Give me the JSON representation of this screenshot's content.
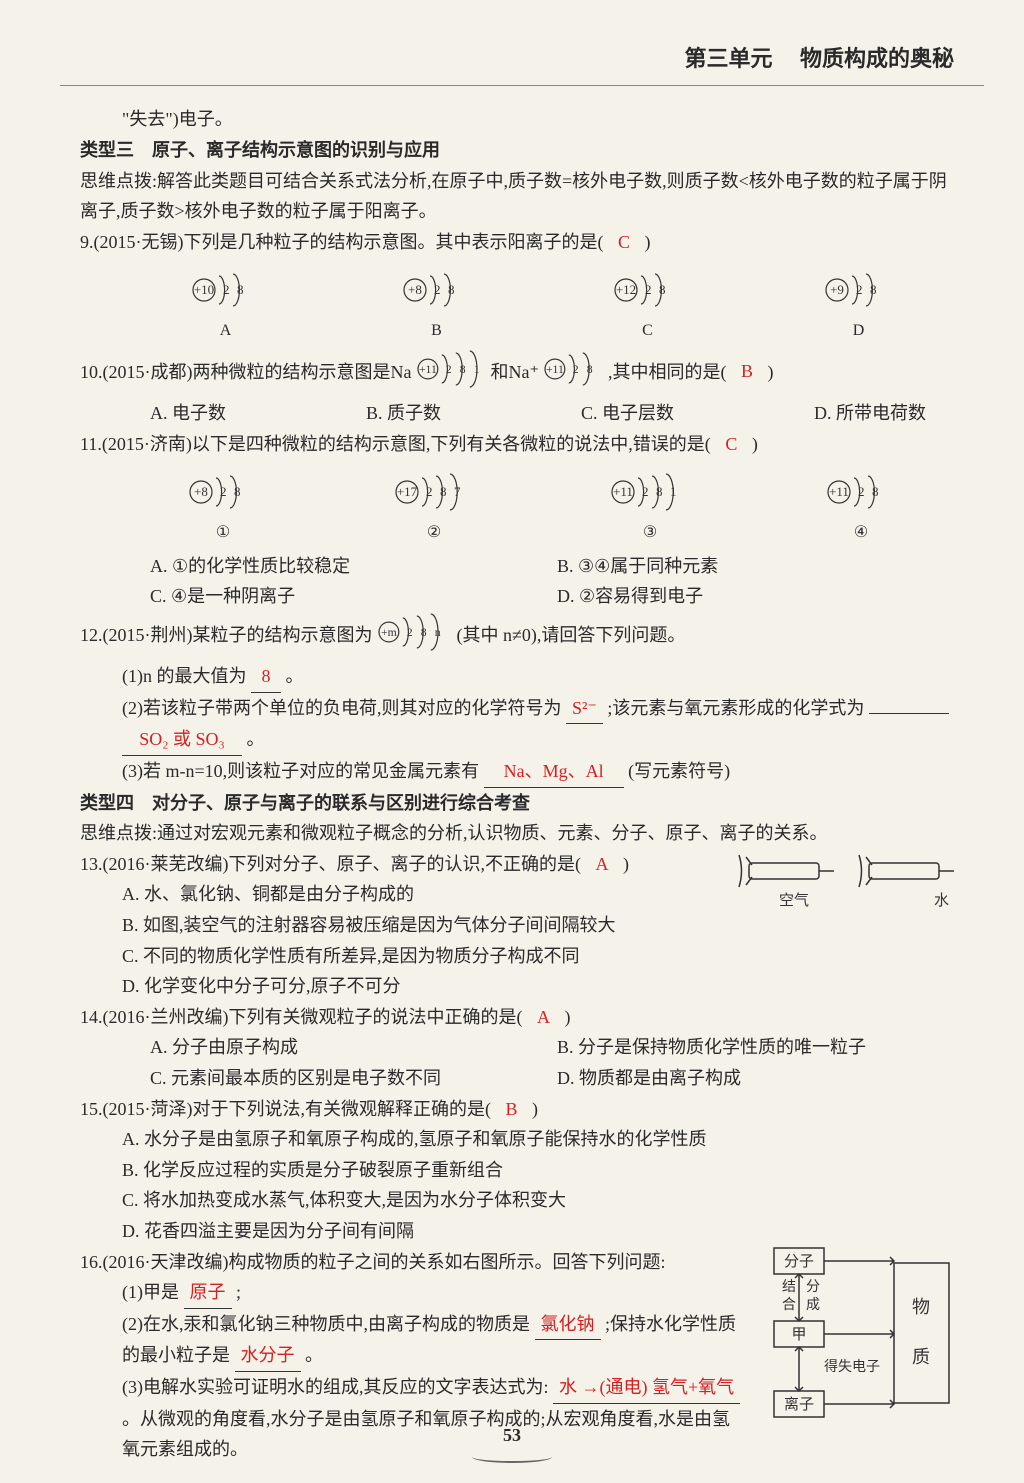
{
  "header": {
    "unit": "第三单元",
    "title": "物质构成的奥秘"
  },
  "intro_line": "\"失去\")电子。",
  "type3": {
    "heading": "类型三　原子、离子结构示意图的识别与应用",
    "hint": "思维点拨:解答此类题目可结合关系式法分析,在原子中,质子数=核外电子数,则质子数<核外电子数的粒子属于阴离子,质子数>核外电子数的粒子属于阳离子。"
  },
  "q9": {
    "text": "9.(2015·无锡)下列是几种粒子的结构示意图。其中表示阳离子的是(",
    "answer": "C",
    "close": ")",
    "atoms": [
      {
        "nucleus": "+10",
        "shells": [
          "2",
          "8"
        ],
        "label": "A"
      },
      {
        "nucleus": "+8",
        "shells": [
          "2",
          "8"
        ],
        "label": "B"
      },
      {
        "nucleus": "+12",
        "shells": [
          "2",
          "8"
        ],
        "label": "C"
      },
      {
        "nucleus": "+9",
        "shells": [
          "2",
          "8"
        ],
        "label": "D"
      }
    ]
  },
  "q10": {
    "prefix": "10.(2015·成都)两种微粒的结构示意图是Na",
    "atom1": {
      "nucleus": "+11",
      "shells": [
        "2",
        "8",
        "1"
      ]
    },
    "mid": "和Na⁺",
    "atom2": {
      "nucleus": "+11",
      "shells": [
        "2",
        "8"
      ]
    },
    "suffix": ",其中相同的是(",
    "answer": "B",
    "close": ")",
    "options": {
      "A": "A. 电子数",
      "B": "B. 质子数",
      "C": "C. 电子层数",
      "D": "D. 所带电荷数"
    }
  },
  "q11": {
    "text": "11.(2015·济南)以下是四种微粒的结构示意图,下列有关各微粒的说法中,错误的是(",
    "answer": "C",
    "close": ")",
    "atoms": [
      {
        "nucleus": "+8",
        "shells": [
          "2",
          "8"
        ],
        "label": "①"
      },
      {
        "nucleus": "+17",
        "shells": [
          "2",
          "8",
          "7"
        ],
        "label": "②"
      },
      {
        "nucleus": "+11",
        "shells": [
          "2",
          "8",
          "1"
        ],
        "label": "③"
      },
      {
        "nucleus": "+11",
        "shells": [
          "2",
          "8"
        ],
        "label": "④"
      }
    ],
    "options": {
      "A": "A. ①的化学性质比较稳定",
      "B": "B. ③④属于同种元素",
      "C": "C. ④是一种阴离子",
      "D": "D. ②容易得到电子"
    }
  },
  "q12": {
    "prefix": "12.(2015·荆州)某粒子的结构示意图为",
    "atom": {
      "nucleus": "+m",
      "shells": [
        "2",
        "8",
        "n"
      ]
    },
    "suffix": "(其中 n≠0),请回答下列问题。",
    "part1_pre": "(1)n 的最大值为",
    "part1_ans": "8",
    "part1_post": "。",
    "part2_pre": "(2)若该粒子带两个单位的负电荷,则其对应的化学符号为",
    "part2_ans1": "S²⁻",
    "part2_mid": ";该元素与氧元素形成的化学式为",
    "part2_ans2": "SO₂ 或 SO₃",
    "part2_post": "。",
    "part3_pre": "(3)若 m-n=10,则该粒子对应的常见金属元素有",
    "part3_ans": "Na、Mg、Al",
    "part3_post": "(写元素符号)"
  },
  "type4": {
    "heading": "类型四　对分子、原子与离子的联系与区别进行综合考查",
    "hint": "思维点拨:通过对宏观元素和微观粒子概念的分析,认识物质、元素、分子、原子、离子的关系。"
  },
  "q13": {
    "text": "13.(2016·莱芜改编)下列对分子、原子、离子的认识,不正确的是(",
    "answer": "A",
    "close": ")",
    "optA": "A. 水、氯化钠、铜都是由分子构成的",
    "optB": "B. 如图,装空气的注射器容易被压缩是因为气体分子间间隔较大",
    "optC": "C. 不同的物质化学性质有所差异,是因为物质分子构成不同",
    "optD": "D. 化学变化中分子可分,原子不可分",
    "img_labels": {
      "left": "空气",
      "right": "水"
    }
  },
  "q14": {
    "text": "14.(2016·兰州改编)下列有关微观粒子的说法中正确的是(",
    "answer": "A",
    "close": ")",
    "optA": "A. 分子由原子构成",
    "optB": "B. 分子是保持物质化学性质的唯一粒子",
    "optC": "C. 元素间最本质的区别是电子数不同",
    "optD": "D. 物质都是由离子构成"
  },
  "q15": {
    "text": "15.(2015·菏泽)对于下列说法,有关微观解释正确的是(",
    "answer": "B",
    "close": ")",
    "optA": "A. 水分子是由氢原子和氧原子构成的,氢原子和氧原子能保持水的化学性质",
    "optB": "B. 化学反应过程的实质是分子破裂原子重新组合",
    "optC": "C. 将水加热变成水蒸气,体积变大,是因为水分子体积变大",
    "optD": "D. 花香四溢主要是因为分子间有间隔"
  },
  "q16": {
    "text": "16.(2016·天津改编)构成物质的粒子之间的关系如右图所示。回答下列问题:",
    "part1_pre": "(1)甲是",
    "part1_ans": "原子",
    "part1_post": ";",
    "part2_pre": "(2)在水,汞和氯化钠三种物质中,由离子构成的物质是",
    "part2_ans1": "氯化钠",
    "part2_mid": ";保持水化学性质的最小粒子是",
    "part2_ans2": "水分子",
    "part2_post": "。",
    "part3_pre": "(3)电解水实验可证明水的组成,其反应的文字表达式为:",
    "part3_ans": "水 →(通电) 氢气+氧气",
    "part3_post": "。从微观的角度看,水分子是由氢原子和氧原子构成的;从宏观角度看,水是由氢氧元素组成的。",
    "diagram": {
      "top": "分子",
      "side_left1": "结",
      "side_left2": "合",
      "side_right1": "分",
      "side_right2": "成",
      "mid": "甲",
      "edge": "得失电子",
      "bottom": "离子",
      "big_top": "物",
      "big_bottom": "质"
    }
  },
  "page_number": "53",
  "atom_style": {
    "nucleus_stroke": "#333",
    "arc_stroke": "#333",
    "text_color": "#333",
    "font_size": 13
  }
}
